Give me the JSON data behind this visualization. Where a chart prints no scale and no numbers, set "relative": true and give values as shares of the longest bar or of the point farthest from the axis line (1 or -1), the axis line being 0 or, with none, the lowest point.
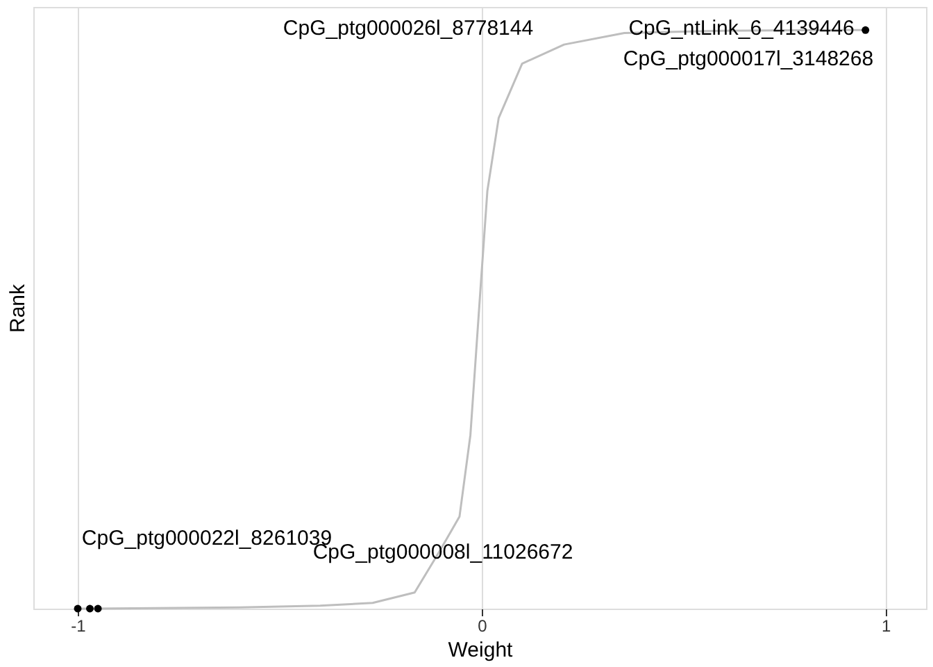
{
  "chart_data": {
    "type": "line",
    "xlabel": "Weight",
    "ylabel": "Rank",
    "relative": true,
    "xlim": [
      -1.11,
      1.1
    ],
    "xticks": [
      -1,
      0,
      1
    ],
    "grid": "x",
    "series": [
      {
        "color": "#bebebe",
        "marker": "none",
        "x": [
          -1,
          -0.97,
          -0.6,
          -0.4,
          -0.27,
          -0.166,
          -0.107,
          -0.055,
          -0.028,
          -0.003,
          0.014,
          0.042,
          0.1,
          0.204,
          0.353,
          0.6,
          0.87,
          0.95
        ],
        "values": [
          0,
          0,
          0.002,
          0.005,
          0.01,
          0.028,
          0.096,
          0.159,
          0.3,
          0.553,
          0.722,
          0.848,
          0.942,
          0.975,
          0.995,
          0.999,
          1,
          1
        ]
      },
      {
        "type": "scatter",
        "color": "#000000",
        "marker": "circle",
        "x": [
          -1,
          -0.97,
          -0.95,
          0.95
        ],
        "values": [
          0,
          0,
          0,
          1
        ]
      }
    ],
    "annotations": [
      "CpG_ptg000022l_8261039",
      "CpG_ptg000008l_11026672",
      "CpG_ptg000026l_8778144",
      "CpG_ntLink_6_4139446",
      "CpG_ptg000017l_3148268"
    ]
  }
}
